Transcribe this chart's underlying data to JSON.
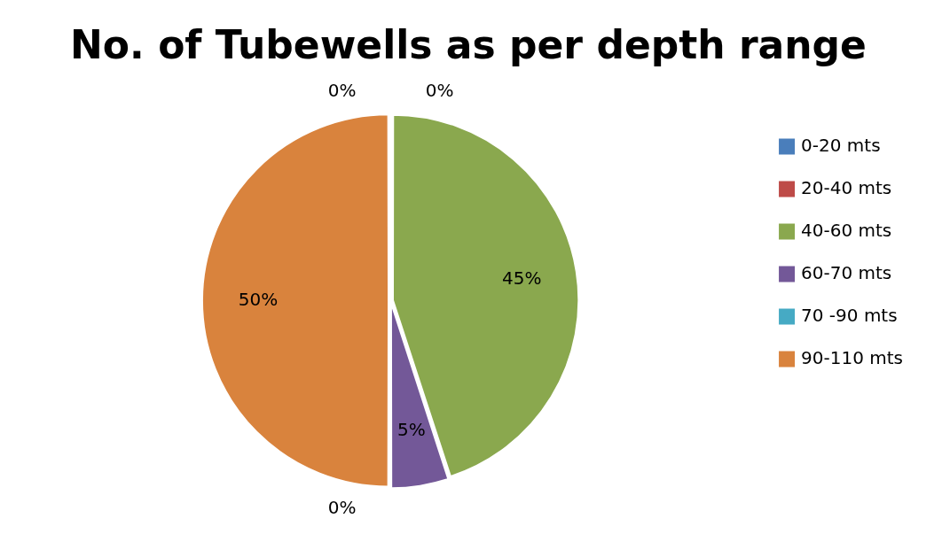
{
  "chart_data": {
    "type": "pie",
    "title": "No. of Tubewells as per depth range",
    "categories": [
      "0-20 mts",
      "20-40 mts",
      "40-60 mts",
      "60-70 mts",
      "70 -90 mts",
      "90-110 mts"
    ],
    "values": [
      0,
      0,
      45,
      5,
      0,
      50
    ],
    "value_labels": [
      "0%",
      "0%",
      "45%",
      "5%",
      "0%",
      "50%"
    ],
    "colors": [
      "#4a7ebb",
      "#be4b48",
      "#8aa84e",
      "#735898",
      "#46aac4",
      "#d9833d"
    ],
    "legend": "right"
  }
}
